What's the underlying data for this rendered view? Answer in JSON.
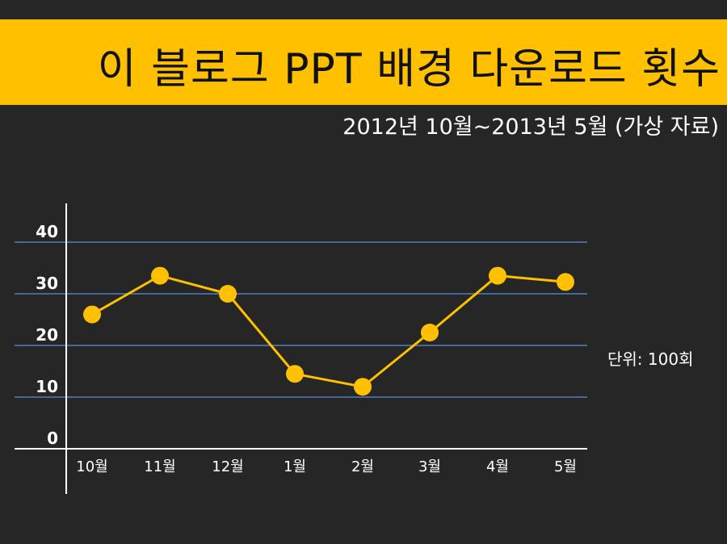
{
  "title": "이 블로그 PPT 배경 다운로드 횟수",
  "subtitle": "2012년 10월~2013년 5월 (가상 자료)",
  "unit_label": "단위: 100회",
  "colors": {
    "title_band": "#ffc000",
    "background": "#262626",
    "series": "#ffc000",
    "gridline": "#4f81bd",
    "axis": "#ffffff"
  },
  "chart_data": {
    "type": "line",
    "title": "이 블로그 PPT 배경 다운로드 횟수",
    "subtitle": "2012년 10월~2013년 5월 (가상 자료)",
    "categories": [
      "10월",
      "11월",
      "12월",
      "1월",
      "2월",
      "3월",
      "4월",
      "5월"
    ],
    "values": [
      26,
      33.5,
      30,
      14.5,
      12,
      22.5,
      33.5,
      32.3
    ],
    "ylim": [
      0,
      40
    ],
    "yticks": [
      "0",
      "10",
      "20",
      "30",
      "40"
    ],
    "grid": "horizontal",
    "legend": "none",
    "unit": "단위: 100회"
  }
}
